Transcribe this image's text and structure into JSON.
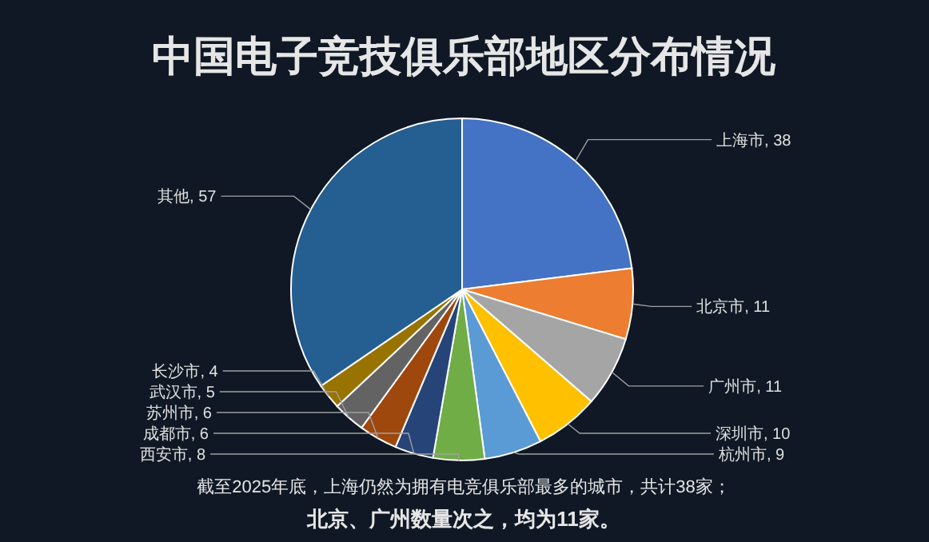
{
  "chart_data": {
    "type": "pie",
    "title": "中国电子竞技俱乐部地区分布情况",
    "categories": [
      "上海市",
      "北京市",
      "广州市",
      "深圳市",
      "杭州市",
      "西安市",
      "成都市",
      "苏州市",
      "武汉市",
      "长沙市",
      "其他"
    ],
    "values": [
      38,
      11,
      11,
      10,
      9,
      8,
      6,
      6,
      5,
      4,
      57
    ],
    "colors": [
      "#4472c4",
      "#ed7d31",
      "#a5a5a5",
      "#ffc000",
      "#5b9bd5",
      "#70ad47",
      "#264478",
      "#9e480e",
      "#636363",
      "#997300",
      "#255e91"
    ],
    "value_labels": [
      ", 38",
      ", 11",
      ", 11",
      ", 10",
      ", 9",
      ", 8",
      ", 6",
      ", 6",
      ", 5",
      ", 4",
      ", 57"
    ],
    "annotations": [
      "截至2025年底，上海仍然为拥有电竞俱乐部最多的城市，共计38家；",
      "北京、广州数量次之，均为11家。"
    ]
  }
}
